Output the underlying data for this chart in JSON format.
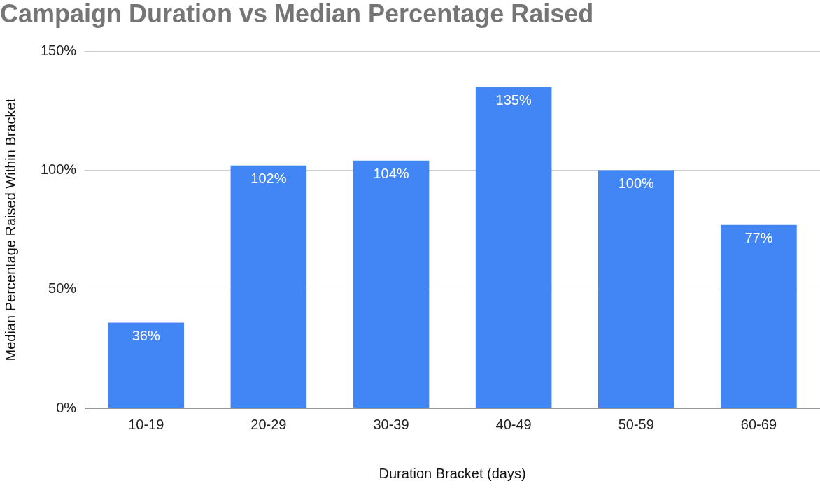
{
  "chart_data": {
    "type": "bar",
    "title": "Campaign Duration vs Median Percentage Raised",
    "xlabel": "Duration Bracket (days)",
    "ylabel": "Median Percentage Raised Within Bracket",
    "categories": [
      "10-19",
      "20-29",
      "30-39",
      "40-49",
      "50-59",
      "60-69"
    ],
    "values": [
      36,
      102,
      104,
      135,
      100,
      77
    ],
    "value_labels": [
      "36%",
      "102%",
      "104%",
      "135%",
      "100%",
      "77%"
    ],
    "color": "#4285f4",
    "ylim": [
      0,
      150
    ],
    "yticks": [
      {
        "value": 0,
        "label": "0%"
      },
      {
        "value": 50,
        "label": "50%"
      },
      {
        "value": 100,
        "label": "100%"
      },
      {
        "value": 150,
        "label": "150%"
      }
    ],
    "grid": "y",
    "legend": false
  }
}
